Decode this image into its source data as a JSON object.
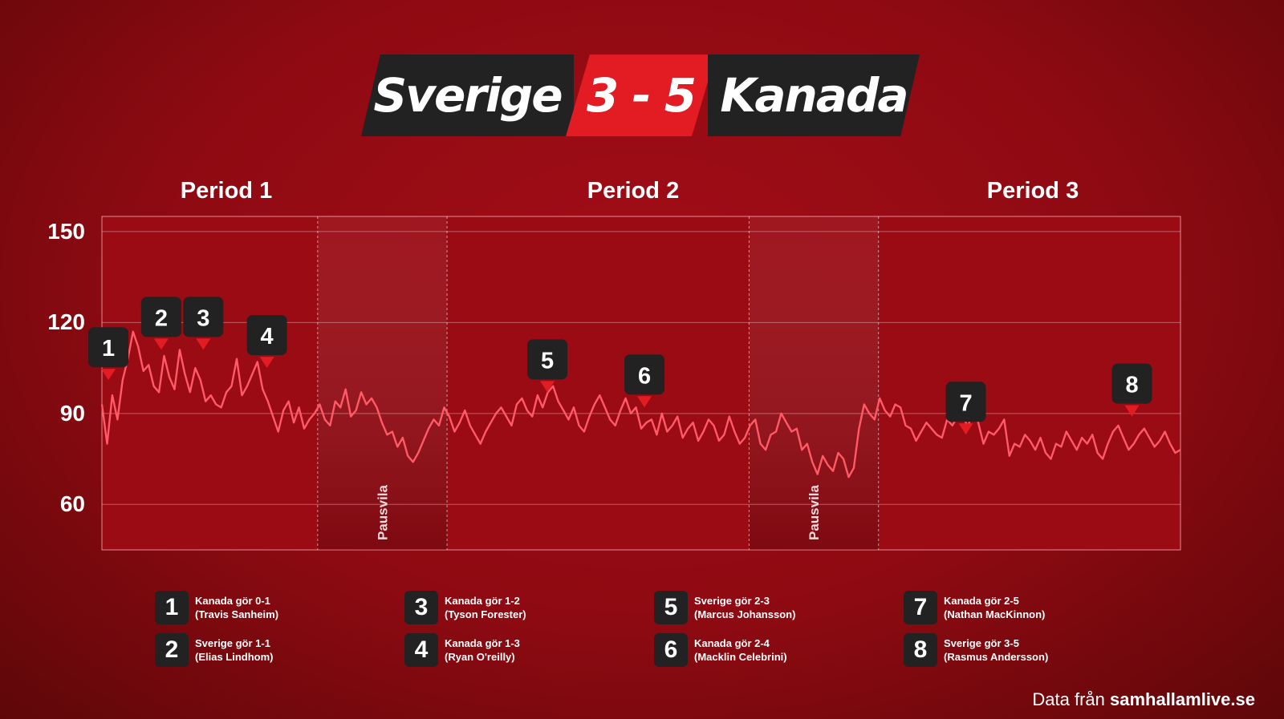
{
  "match": {
    "home_team": "Sverige",
    "score": "3 - 5",
    "away_team": "Kanada"
  },
  "periods": [
    "Period 1",
    "Period 2",
    "Period 3"
  ],
  "break_label": "Pausvila",
  "goals": [
    {
      "n": "1",
      "line1": "Kanada gör 0-1",
      "line2": "(Travis Sanheim)"
    },
    {
      "n": "2",
      "line1": "Sverige gör 1-1",
      "line2": "(Elias Lindhom)"
    },
    {
      "n": "3",
      "line1": "Kanada gör 1-2",
      "line2": "(Tyson Forester)"
    },
    {
      "n": "4",
      "line1": "Kanada gör 1-3",
      "line2": "(Ryan O'reilly)"
    },
    {
      "n": "5",
      "line1": "Sverige gör 2-3",
      "line2": "(Marcus Johansson)"
    },
    {
      "n": "6",
      "line1": "Kanada gör 2-4",
      "line2": "(Macklin Celebrini)"
    },
    {
      "n": "7",
      "line1": "Kanada gör 2-5",
      "line2": "(Nathan MacKinnon)"
    },
    {
      "n": "8",
      "line1": "Sverige gör 3-5",
      "line2": "(Rasmus Andersson)"
    }
  ],
  "source": {
    "prefix": "Data från ",
    "site": "samhallamlive.se"
  },
  "colors": {
    "line": "#ff5a66",
    "marker": "#e31c23",
    "score_bg": "#e31c23",
    "badge_bg": "#222222"
  },
  "chart_data": {
    "type": "line",
    "title": "",
    "xlabel": "",
    "ylabel": "",
    "ylim": [
      45,
      155
    ],
    "yticks": [
      60,
      90,
      120,
      150
    ],
    "grid": true,
    "x_unit": "minutes including breaks",
    "xlim": [
      0,
      100
    ],
    "period_spans": [
      [
        0,
        20
      ],
      [
        32,
        60
      ],
      [
        72,
        100
      ]
    ],
    "break_spans": [
      [
        20,
        32
      ],
      [
        60,
        72
      ]
    ],
    "goal_markers": [
      {
        "n": "1",
        "x": 0.6,
        "y": 101
      },
      {
        "n": "2",
        "x": 5.5,
        "y": 111
      },
      {
        "n": "3",
        "x": 9.4,
        "y": 111
      },
      {
        "n": "4",
        "x": 15.3,
        "y": 105
      },
      {
        "n": "5",
        "x": 41.3,
        "y": 97
      },
      {
        "n": "6",
        "x": 50.3,
        "y": 92
      },
      {
        "n": "7",
        "x": 80.1,
        "y": 83
      },
      {
        "n": "8",
        "x": 95.5,
        "y": 89
      }
    ],
    "values": [
      93,
      80,
      96,
      88,
      101,
      108,
      117,
      112,
      104,
      106,
      99,
      97,
      109,
      102,
      98,
      111,
      103,
      97,
      105,
      101,
      94,
      96,
      93,
      92,
      97,
      99,
      108,
      96,
      99,
      103,
      107,
      98,
      94,
      89,
      84,
      91,
      94,
      87,
      92,
      85,
      88,
      90,
      93,
      88,
      86,
      94,
      92,
      98,
      89,
      91,
      97,
      93,
      95,
      92,
      87,
      83,
      84,
      79,
      82,
      76,
      74,
      77,
      81,
      85,
      88,
      86,
      92,
      89,
      84,
      87,
      91,
      86,
      83,
      80,
      84,
      87,
      90,
      92,
      89,
      86,
      93,
      95,
      91,
      89,
      96,
      92,
      97,
      99,
      94,
      91,
      88,
      92,
      86,
      84,
      89,
      93,
      96,
      92,
      88,
      86,
      91,
      95,
      90,
      92,
      85,
      87,
      88,
      83,
      90,
      84,
      86,
      89,
      82,
      85,
      87,
      81,
      84,
      88,
      86,
      81,
      83,
      89,
      84,
      80,
      82,
      86,
      88,
      80,
      78,
      83,
      84,
      90,
      87,
      84,
      85,
      78,
      80,
      74,
      70,
      76,
      73,
      71,
      77,
      75,
      69,
      72,
      85,
      93,
      90,
      88,
      95,
      91,
      89,
      93,
      92,
      86,
      85,
      81,
      84,
      87,
      85,
      83,
      82,
      88,
      86,
      89,
      90,
      85,
      93,
      87,
      80,
      84,
      83,
      85,
      88,
      76,
      80,
      79,
      83,
      81,
      78,
      82,
      77,
      75,
      80,
      79,
      84,
      81,
      78,
      82,
      80,
      83,
      77,
      75,
      80,
      84,
      86,
      82,
      78,
      80,
      83,
      85,
      82,
      79,
      81,
      84,
      80,
      77,
      78
    ]
  }
}
